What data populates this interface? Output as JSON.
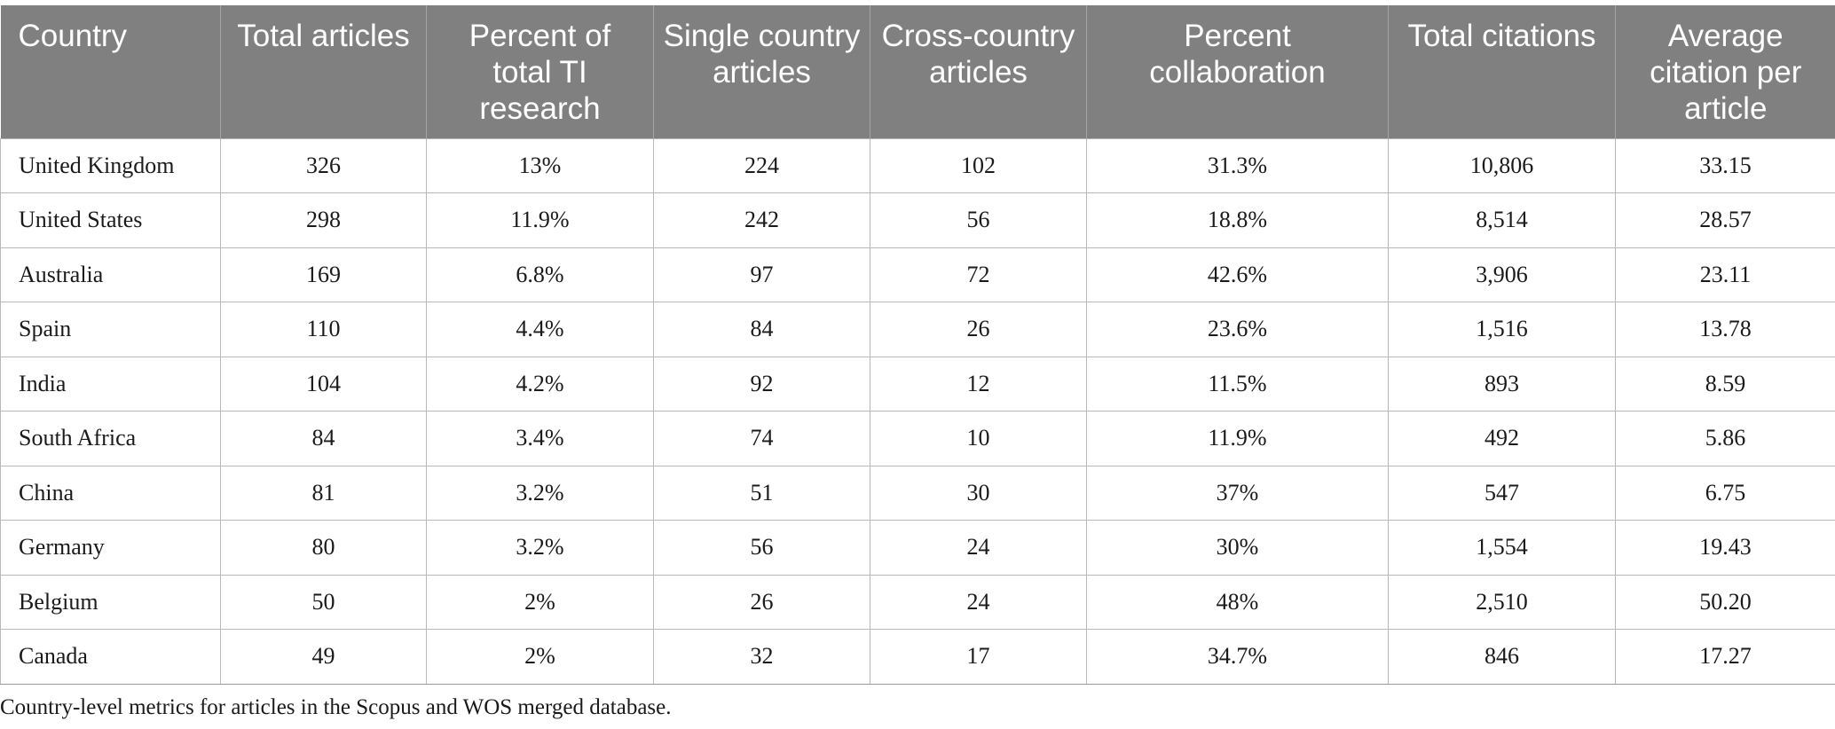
{
  "table": {
    "headers": [
      "Country",
      "Total articles",
      "Percent of total TI research",
      "Single country articles",
      "Cross-country articles",
      "Percent collaboration",
      "Total citations",
      "Average citation per article"
    ],
    "rows": [
      [
        "United Kingdom",
        "326",
        "13%",
        "224",
        "102",
        "31.3%",
        "10,806",
        "33.15"
      ],
      [
        "United States",
        "298",
        "11.9%",
        "242",
        "56",
        "18.8%",
        "8,514",
        "28.57"
      ],
      [
        "Australia",
        "169",
        "6.8%",
        "97",
        "72",
        "42.6%",
        "3,906",
        "23.11"
      ],
      [
        "Spain",
        "110",
        "4.4%",
        "84",
        "26",
        "23.6%",
        "1,516",
        "13.78"
      ],
      [
        "India",
        "104",
        "4.2%",
        "92",
        "12",
        "11.5%",
        "893",
        "8.59"
      ],
      [
        "South Africa",
        "84",
        "3.4%",
        "74",
        "10",
        "11.9%",
        "492",
        "5.86"
      ],
      [
        "China",
        "81",
        "3.2%",
        "51",
        "30",
        "37%",
        "547",
        "6.75"
      ],
      [
        "Germany",
        "80",
        "3.2%",
        "56",
        "24",
        "30%",
        "1,554",
        "19.43"
      ],
      [
        "Belgium",
        "50",
        "2%",
        "26",
        "24",
        "48%",
        "2,510",
        "50.20"
      ],
      [
        "Canada",
        "49",
        "2%",
        "32",
        "17",
        "34.7%",
        "846",
        "17.27"
      ]
    ]
  },
  "caption": "Country-level metrics for articles in the Scopus and WOS merged database.",
  "colors": {
    "header_bg": "#808080",
    "header_text": "#ffffff",
    "grid": "#b8b8b8"
  }
}
